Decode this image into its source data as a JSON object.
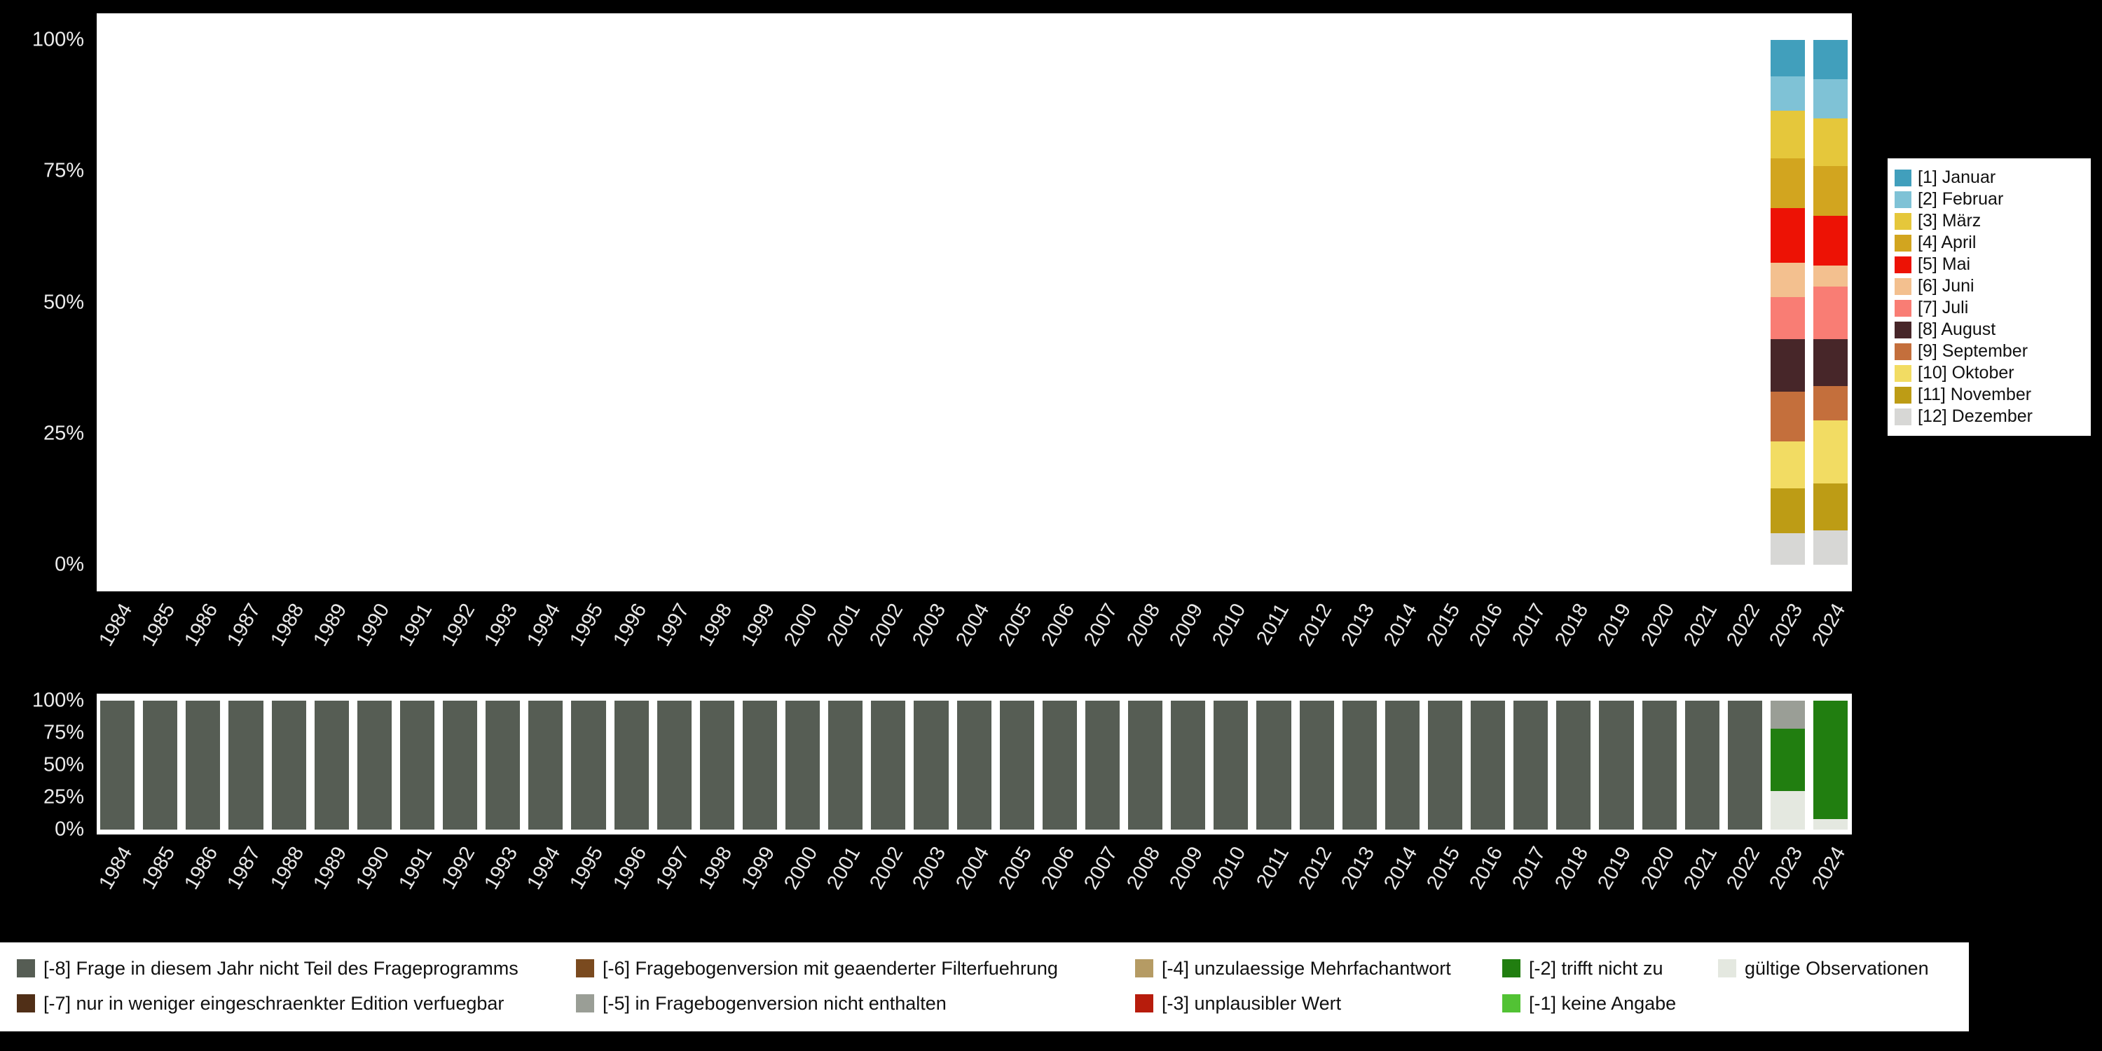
{
  "chart_data": [
    {
      "id": "monthly-distribution",
      "type": "bar",
      "stacked": true,
      "orientation": "vertical",
      "title": "",
      "xlabel": "",
      "ylabel": "",
      "ylim": [
        0,
        100
      ],
      "yticks": [
        "100%",
        "75%",
        "50%",
        "25%",
        "0%"
      ],
      "legend_position": "right",
      "grid": false,
      "categories": [
        "1984",
        "1985",
        "1986",
        "1987",
        "1988",
        "1989",
        "1990",
        "1991",
        "1992",
        "1993",
        "1994",
        "1995",
        "1996",
        "1997",
        "1998",
        "1999",
        "2000",
        "2001",
        "2002",
        "2003",
        "2004",
        "2005",
        "2006",
        "2007",
        "2008",
        "2009",
        "2010",
        "2011",
        "2012",
        "2013",
        "2014",
        "2015",
        "2016",
        "2017",
        "2018",
        "2019",
        "2020",
        "2021",
        "2022",
        "2023",
        "2024"
      ],
      "series": [
        {
          "name": "[1] Januar",
          "color": "#419FBC",
          "values": {
            "default": 0,
            "2023": 7,
            "2024": 7.5
          }
        },
        {
          "name": "[2] Februar",
          "color": "#7FC2D6",
          "values": {
            "default": 0,
            "2023": 6.5,
            "2024": 7.5
          }
        },
        {
          "name": "[3] März",
          "color": "#E5C73B",
          "values": {
            "default": 0,
            "2023": 9,
            "2024": 9
          }
        },
        {
          "name": "[4] April",
          "color": "#D2A51F",
          "values": {
            "default": 0,
            "2023": 9.5,
            "2024": 9.5
          }
        },
        {
          "name": "[5] Mai",
          "color": "#ED1205",
          "values": {
            "default": 0,
            "2023": 10.5,
            "2024": 9.5
          }
        },
        {
          "name": "[6] Juni",
          "color": "#F3C08F",
          "values": {
            "default": 0,
            "2023": 6.5,
            "2024": 4
          }
        },
        {
          "name": "[7] Juli",
          "color": "#F97D74",
          "values": {
            "default": 0,
            "2023": 8,
            "2024": 10
          }
        },
        {
          "name": "[8] August",
          "color": "#472629",
          "values": {
            "default": 0,
            "2023": 10,
            "2024": 9
          }
        },
        {
          "name": "[9] September",
          "color": "#C46F3C",
          "values": {
            "default": 0,
            "2023": 9.5,
            "2024": 6.5
          }
        },
        {
          "name": "[10] Oktober",
          "color": "#F2DC63",
          "values": {
            "default": 0,
            "2023": 9,
            "2024": 12
          }
        },
        {
          "name": "[11] November",
          "color": "#BD9C15",
          "values": {
            "default": 0,
            "2023": 8.5,
            "2024": 9
          }
        },
        {
          "name": "[12] Dezember",
          "color": "#D7D7D5",
          "values": {
            "default": 0,
            "2023": 6,
            "2024": 6.5
          }
        }
      ]
    },
    {
      "id": "missing-values",
      "type": "bar",
      "stacked": true,
      "orientation": "vertical",
      "title": "",
      "xlabel": "",
      "ylabel": "",
      "ylim": [
        0,
        100
      ],
      "yticks": [
        "100%",
        "75%",
        "50%",
        "25%",
        "0%"
      ],
      "legend_position": "bottom",
      "grid": false,
      "categories": [
        "1984",
        "1985",
        "1986",
        "1987",
        "1988",
        "1989",
        "1990",
        "1991",
        "1992",
        "1993",
        "1994",
        "1995",
        "1996",
        "1997",
        "1998",
        "1999",
        "2000",
        "2001",
        "2002",
        "2003",
        "2004",
        "2005",
        "2006",
        "2007",
        "2008",
        "2009",
        "2010",
        "2011",
        "2012",
        "2013",
        "2014",
        "2015",
        "2016",
        "2017",
        "2018",
        "2019",
        "2020",
        "2021",
        "2022",
        "2023",
        "2024"
      ],
      "series": [
        {
          "name": "[-8] Frage in diesem Jahr nicht Teil des Frageprogramms",
          "color": "#565D54",
          "values": {
            "default": 100,
            "2023": 0,
            "2024": 0
          }
        },
        {
          "name": "[-7] nur in weniger eingeschraenkter Edition verfuegbar",
          "color": "#502F17",
          "values": {
            "default": 0
          }
        },
        {
          "name": "[-6] Fragebogenversion mit geaenderter Filterfuehrung",
          "color": "#7A4A1F",
          "values": {
            "default": 0
          }
        },
        {
          "name": "[-5] in Fragebogenversion nicht enthalten",
          "color": "#9A9E96",
          "values": {
            "default": 0,
            "2023": 22
          }
        },
        {
          "name": "[-4] unzulaessige Mehrfachantwort",
          "color": "#B59B64",
          "values": {
            "default": 0
          }
        },
        {
          "name": "[-3] unplausibler Wert",
          "color": "#B71C0C",
          "values": {
            "default": 0
          }
        },
        {
          "name": "[-2] trifft nicht zu",
          "color": "#217E10",
          "values": {
            "default": 0,
            "2023": 48,
            "2024": 92
          }
        },
        {
          "name": "[-1] keine Angabe",
          "color": "#52C234",
          "values": {
            "default": 0
          }
        },
        {
          "name": "gültige Observationen",
          "color": "#E4E8E0",
          "values": {
            "default": 0,
            "2023": 30,
            "2024": 8
          }
        }
      ]
    }
  ]
}
